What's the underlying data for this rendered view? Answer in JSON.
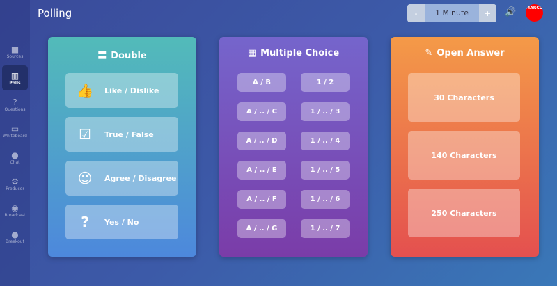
{
  "header": {
    "title": "Polling",
    "timer": {
      "decrement": "-",
      "value": "1 Minute",
      "increment": "+"
    },
    "avatar_text": "MARCO"
  },
  "sidebar": {
    "items": [
      {
        "label": "Sources",
        "icon": "video-icon",
        "glyph": "■"
      },
      {
        "label": "Polls",
        "icon": "bar-chart-icon",
        "glyph": "▥"
      },
      {
        "label": "Questions",
        "icon": "question-icon",
        "glyph": "?"
      },
      {
        "label": "Whiteboard",
        "icon": "laptop-icon",
        "glyph": "▭"
      },
      {
        "label": "Chat",
        "icon": "chat-icon",
        "glyph": "●"
      },
      {
        "label": "Producer",
        "icon": "users-gear-icon",
        "glyph": "⚙"
      },
      {
        "label": "Broadcast",
        "icon": "podcast-icon",
        "glyph": "◉"
      },
      {
        "label": "Breakout",
        "icon": "users-icon",
        "glyph": "●"
      }
    ],
    "active": "Polls"
  },
  "double": {
    "title": "Double",
    "items": [
      {
        "label": "Like / Dislike",
        "glyph": "👍"
      },
      {
        "label": "True / False",
        "glyph": "☑"
      },
      {
        "label": "Agree / Disagree",
        "glyph": "☺"
      },
      {
        "label": "Yes / No",
        "glyph": "?"
      }
    ]
  },
  "multiple": {
    "title": "Multiple Choice",
    "letters": [
      "A / B",
      "A / .. / C",
      "A / .. / D",
      "A / .. / E",
      "A / .. / F",
      "A / .. / G"
    ],
    "numbers": [
      "1 / 2",
      "1 / .. / 3",
      "1 / .. / 4",
      "1 / .. / 5",
      "1 / .. / 6",
      "1 / .. / 7"
    ]
  },
  "open": {
    "title": "Open Answer",
    "items": [
      "30 Characters",
      "140 Characters",
      "250 Characters"
    ]
  }
}
